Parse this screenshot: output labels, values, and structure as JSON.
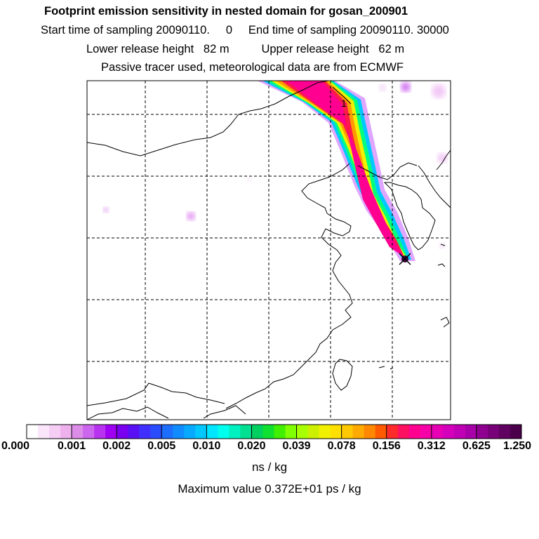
{
  "header": {
    "title": "Footprint emission sensitivity in nested domain for gosan_200901",
    "sampling_line": "Start time of sampling 20090110.     0     End time of sampling 20090110. 30000",
    "release_line": "Lower release height   82 m          Upper release height   62 m",
    "tracer_line": "Passive tracer used, meteorological data are from ECMWF"
  },
  "map": {
    "plume_label": "1",
    "receptor_symbol": "x-marker",
    "colors": {
      "border": "#000000",
      "grid": "#000000",
      "background": "#ffffff"
    }
  },
  "colorbar": {
    "tick_labels": [
      "0.000",
      "0.001",
      "0.002",
      "0.005",
      "0.010",
      "0.020",
      "0.039",
      "0.078",
      "0.156",
      "0.312",
      "0.625",
      "1.250"
    ],
    "colors": [
      "#ffffff",
      "#fbe6fb",
      "#f5cdf5",
      "#eeb1ee",
      "#dc8de8",
      "#cc66ee",
      "#b833f0",
      "#9f00f4",
      "#7a00f0",
      "#5a10f5",
      "#4030ff",
      "#2a4cff",
      "#1d6dff",
      "#118cff",
      "#08aaff",
      "#00c8ff",
      "#00e6ff",
      "#00ffee",
      "#00f0c0",
      "#00e090",
      "#00d060",
      "#10e030",
      "#40f000",
      "#80ff00",
      "#a8ff00",
      "#cdf000",
      "#f0f000",
      "#ffe000",
      "#ffc800",
      "#ffaa00",
      "#ff8800",
      "#ff5a00",
      "#ff2a2a",
      "#ff1060",
      "#ff0090",
      "#f800a8",
      "#e800b4",
      "#d400bc",
      "#c000b4",
      "#a800a8",
      "#900090",
      "#780078",
      "#600060",
      "#4a004a"
    ],
    "units": "ns / kg",
    "max_value": "Maximum value  0.372E+01 ps / kg"
  }
}
